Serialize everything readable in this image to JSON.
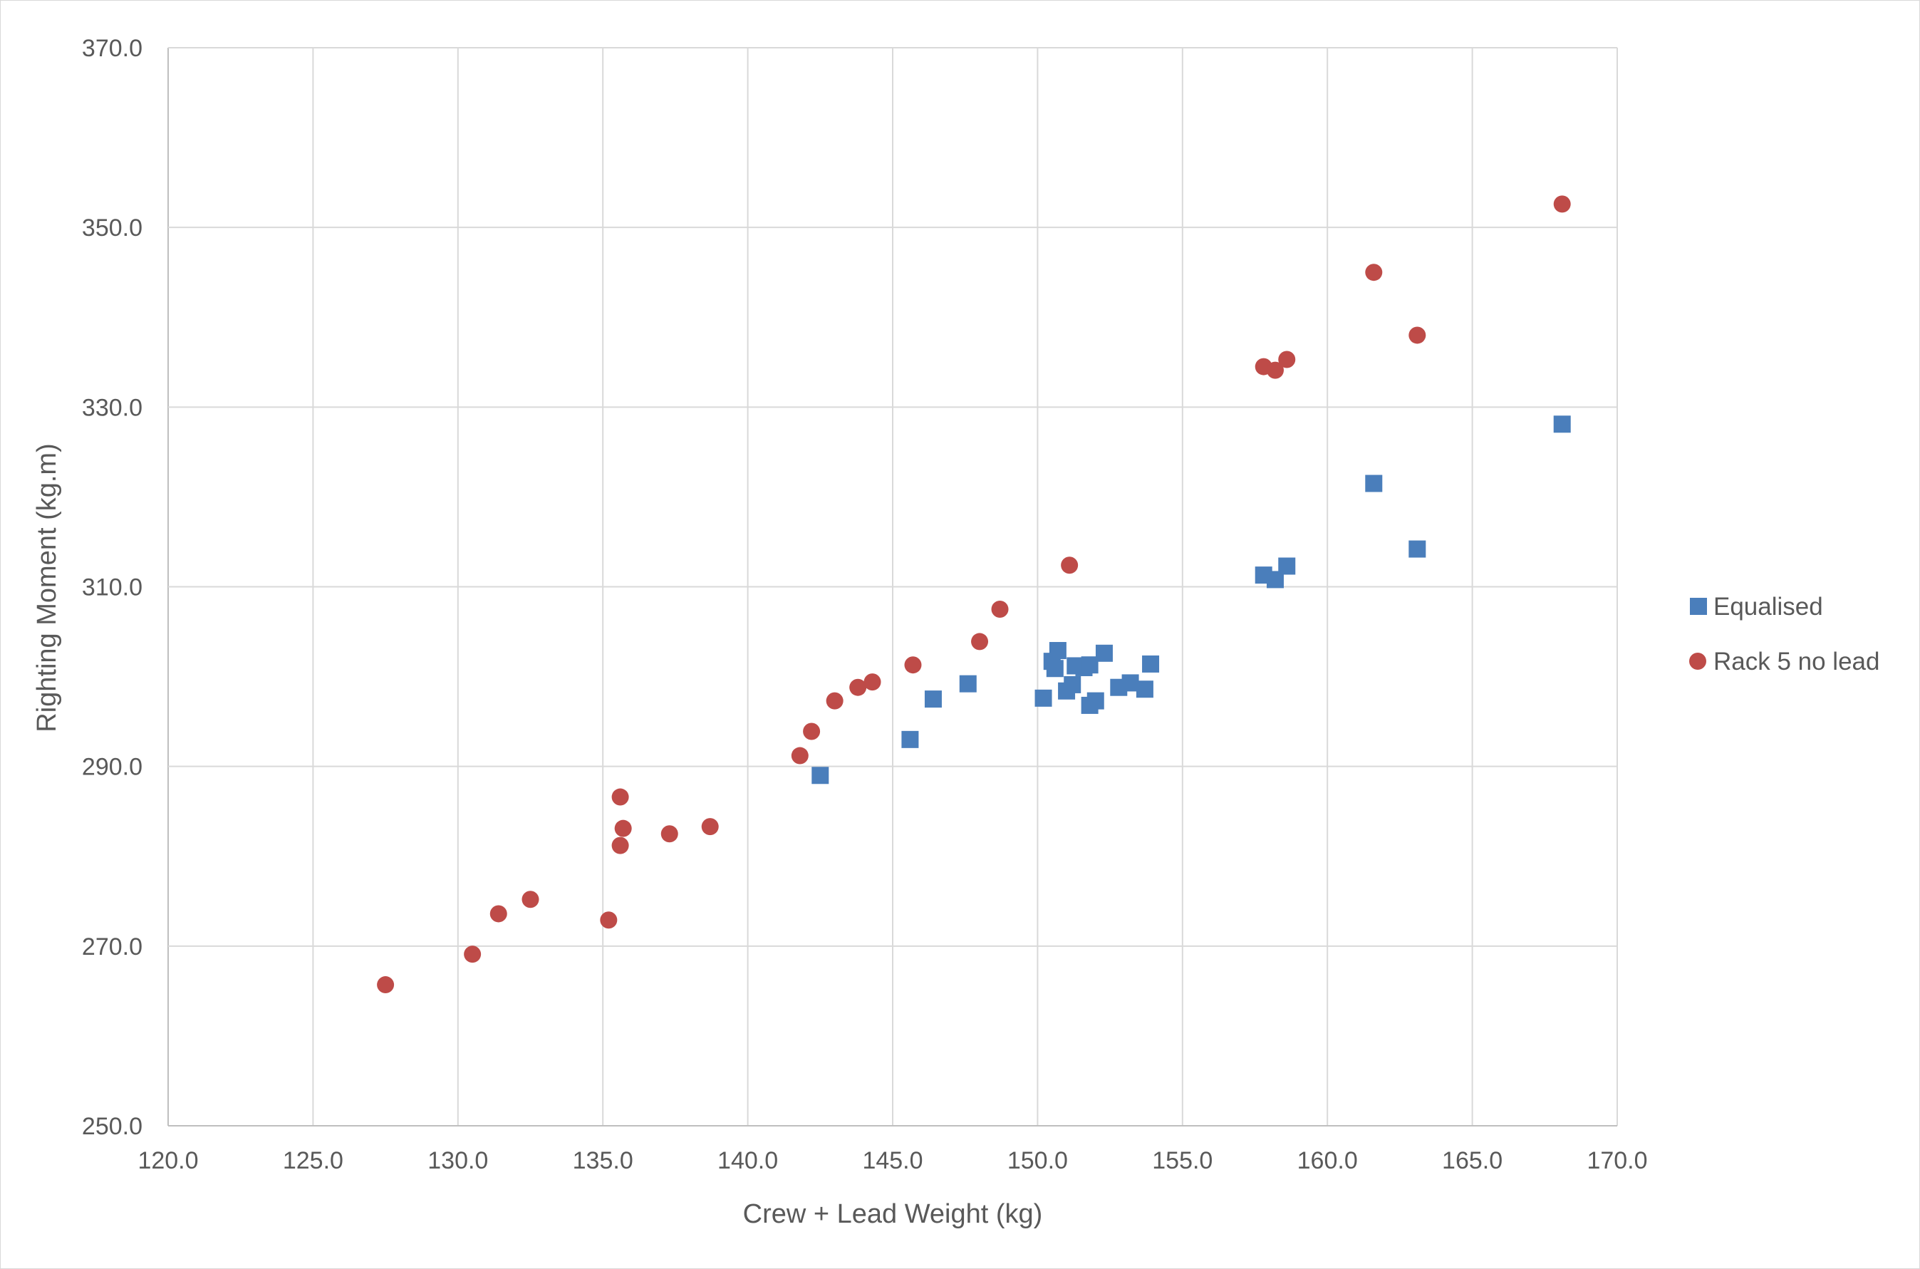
{
  "chart_data": {
    "type": "scatter",
    "xlabel": "Crew + Lead Weight (kg)",
    "ylabel": "Righting Moment (kg.m)",
    "xlim": [
      120,
      170
    ],
    "ylim": [
      250,
      370
    ],
    "x_ticks": [
      "120.0",
      "125.0",
      "130.0",
      "135.0",
      "140.0",
      "145.0",
      "150.0",
      "155.0",
      "160.0",
      "165.0",
      "170.0"
    ],
    "y_ticks": [
      "250.0",
      "270.0",
      "290.0",
      "310.0",
      "330.0",
      "350.0",
      "370.0"
    ],
    "grid": true,
    "legend_position": "right",
    "series": [
      {
        "name": "Equalised",
        "marker": "square",
        "color": "#4a7ebb",
        "points": [
          [
            142.5,
            289.0
          ],
          [
            145.6,
            293.0
          ],
          [
            146.4,
            297.5
          ],
          [
            147.6,
            299.2
          ],
          [
            150.2,
            297.6
          ],
          [
            150.5,
            301.7
          ],
          [
            150.6,
            300.9
          ],
          [
            150.7,
            302.9
          ],
          [
            151.0,
            298.4
          ],
          [
            151.2,
            299.1
          ],
          [
            151.3,
            301.2
          ],
          [
            151.6,
            301.0
          ],
          [
            151.8,
            301.3
          ],
          [
            151.8,
            296.8
          ],
          [
            152.0,
            297.3
          ],
          [
            152.3,
            302.6
          ],
          [
            152.8,
            298.8
          ],
          [
            153.2,
            299.3
          ],
          [
            153.7,
            298.6
          ],
          [
            153.9,
            301.4
          ],
          [
            157.8,
            311.3
          ],
          [
            158.2,
            310.8
          ],
          [
            158.6,
            312.3
          ],
          [
            161.6,
            321.5
          ],
          [
            163.1,
            314.2
          ],
          [
            168.1,
            328.1
          ]
        ]
      },
      {
        "name": "Rack 5 no lead",
        "marker": "circle",
        "color": "#be4b48",
        "points": [
          [
            127.5,
            265.7
          ],
          [
            130.5,
            269.1
          ],
          [
            131.4,
            273.6
          ],
          [
            132.5,
            275.2
          ],
          [
            135.2,
            272.9
          ],
          [
            135.6,
            286.6
          ],
          [
            135.6,
            281.2
          ],
          [
            135.7,
            283.1
          ],
          [
            137.3,
            282.5
          ],
          [
            138.7,
            283.3
          ],
          [
            141.8,
            291.2
          ],
          [
            142.2,
            293.9
          ],
          [
            143.0,
            297.3
          ],
          [
            143.8,
            298.8
          ],
          [
            144.3,
            299.4
          ],
          [
            145.7,
            301.3
          ],
          [
            148.0,
            303.9
          ],
          [
            148.7,
            307.5
          ],
          [
            151.1,
            312.4
          ],
          [
            157.8,
            334.5
          ],
          [
            158.2,
            334.1
          ],
          [
            158.6,
            335.3
          ],
          [
            161.6,
            345.0
          ],
          [
            163.1,
            338.0
          ],
          [
            168.1,
            352.6
          ]
        ]
      }
    ]
  }
}
